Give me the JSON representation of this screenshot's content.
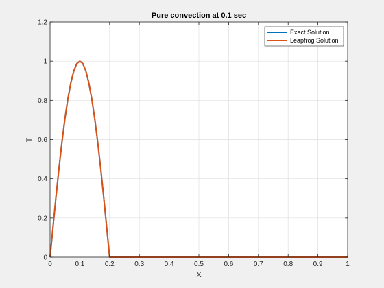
{
  "chart_data": {
    "type": "line",
    "title": "Pure convection at 0.1 sec",
    "xlabel": "X",
    "ylabel": "T",
    "xlim": [
      0,
      1
    ],
    "ylim": [
      0,
      1.2
    ],
    "xticks": [
      0,
      0.1,
      0.2,
      0.3,
      0.4,
      0.5,
      0.6,
      0.7,
      0.8,
      0.9,
      1
    ],
    "xtick_labels": [
      "0",
      "0.1",
      "0.2",
      "0.3",
      "0.4",
      "0.5",
      "0.6",
      "0.7",
      "0.8",
      "0.9",
      "1"
    ],
    "yticks": [
      0,
      0.2,
      0.4,
      0.6,
      0.8,
      1,
      1.2
    ],
    "ytick_labels": [
      "0",
      "0.2",
      "0.4",
      "0.6",
      "0.8",
      "1",
      "1.2"
    ],
    "grid": true,
    "legend_position": "top-right",
    "x": [
      0,
      0.01,
      0.02,
      0.03,
      0.04,
      0.05,
      0.06,
      0.07,
      0.08,
      0.09,
      0.1,
      0.11,
      0.12,
      0.13,
      0.14,
      0.15,
      0.16,
      0.17,
      0.18,
      0.19,
      0.2,
      0.21,
      0.3,
      0.4,
      0.5,
      0.6,
      0.7,
      0.8,
      0.9,
      1.0
    ],
    "series": [
      {
        "name": "Exact Solution",
        "color": "#0072BD",
        "values": [
          0,
          0.156,
          0.309,
          0.454,
          0.588,
          0.707,
          0.809,
          0.891,
          0.951,
          0.988,
          1.0,
          0.988,
          0.951,
          0.891,
          0.809,
          0.707,
          0.588,
          0.454,
          0.309,
          0.156,
          0,
          0,
          0,
          0,
          0,
          0,
          0,
          0,
          0,
          0
        ]
      },
      {
        "name": "Leapfrog Solution",
        "color": "#D95319",
        "values": [
          0,
          0.156,
          0.309,
          0.454,
          0.588,
          0.707,
          0.809,
          0.891,
          0.951,
          0.988,
          1.0,
          0.988,
          0.951,
          0.891,
          0.809,
          0.707,
          0.588,
          0.454,
          0.309,
          0.156,
          0,
          0,
          0,
          0,
          0,
          0,
          0,
          0,
          0,
          0
        ]
      }
    ]
  }
}
